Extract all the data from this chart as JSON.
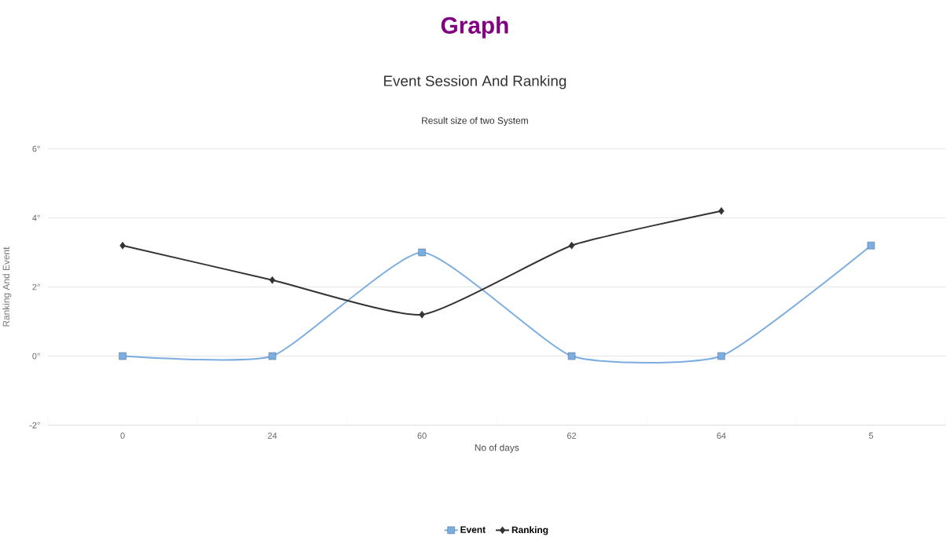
{
  "chart_data": {
    "type": "line",
    "title": "Graph",
    "subtitle": "Event Session And Ranking",
    "annotations": [
      "Result size of two System"
    ],
    "xlabel": "No of days",
    "ylabel": "Ranking And Event",
    "categories": [
      "0",
      "24",
      "60",
      "62",
      "64",
      "5"
    ],
    "series": [
      {
        "name": "Event",
        "color": "#7cade0",
        "marker": "square",
        "values": [
          0,
          0,
          3,
          0,
          0,
          3.2
        ]
      },
      {
        "name": "Ranking",
        "color": "#333333",
        "marker": "diamond",
        "values": [
          3.2,
          2.2,
          1.2,
          3.2,
          4.2,
          null
        ]
      }
    ],
    "ylim": [
      -2,
      6
    ],
    "yticks": [
      {
        "value": -2,
        "label": "-2°"
      },
      {
        "value": 0,
        "label": "0°"
      },
      {
        "value": 2,
        "label": "2°"
      },
      {
        "value": 4,
        "label": "4°"
      },
      {
        "value": 6,
        "label": "6°"
      }
    ],
    "grid": "y",
    "legend": "bottom",
    "line_style": "solid"
  }
}
